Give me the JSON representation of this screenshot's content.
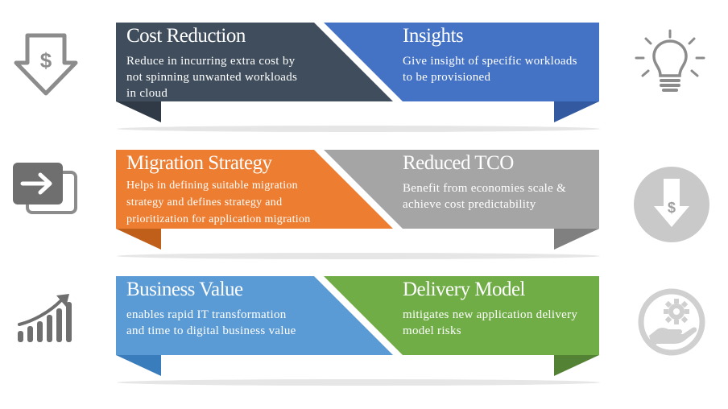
{
  "colors": {
    "dark_slate": "#3f4d5c",
    "blue": "#4472c4",
    "orange": "#ed7d31",
    "gray": "#a5a5a5",
    "light_blue": "#5b9bd5",
    "green": "#70ad47",
    "icon_gray": "#8c8c8c",
    "icon_light": "#d9d9d9"
  },
  "rows": [
    {
      "left": {
        "title": "Cost Reduction",
        "desc_lines": [
          "Reduce in incurring extra cost by",
          "not spinning unwanted workloads",
          "in cloud"
        ]
      },
      "right": {
        "title": "Insights",
        "desc_lines": [
          "Give insight of specific workloads",
          "to be provisioned"
        ]
      },
      "left_icon": "dollar-down-arrow-icon",
      "right_icon": "lightbulb-icon"
    },
    {
      "left": {
        "title": "Migration Strategy",
        "desc_lines": [
          "Helps in defining suitable migration",
          "strategy and defines strategy and",
          "prioritization for application migration"
        ]
      },
      "right": {
        "title": "Reduced TCO",
        "desc_lines": [
          "Benefit from economies scale &",
          "achieve cost predictability"
        ]
      },
      "left_icon": "migrate-arrow-icon",
      "right_icon": "dollar-down-circle-icon"
    },
    {
      "left": {
        "title": "Business Value",
        "desc_lines": [
          "enables rapid IT transformation",
          "and time to digital business value"
        ]
      },
      "right": {
        "title": "Delivery Model",
        "desc_lines": [
          "mitigates new application delivery",
          "model risks"
        ]
      },
      "left_icon": "growth-chart-icon",
      "right_icon": "hand-gear-icon"
    }
  ]
}
